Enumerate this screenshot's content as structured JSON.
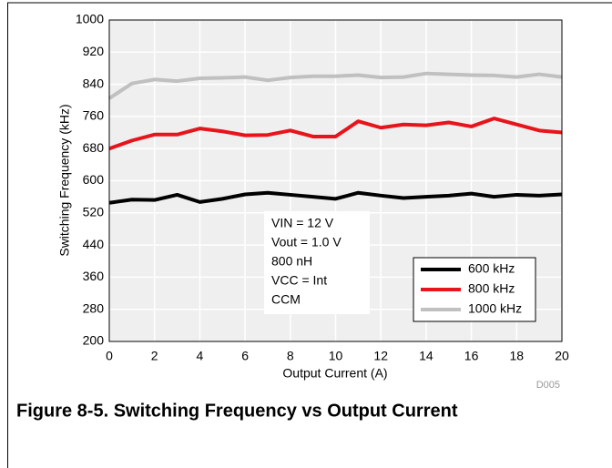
{
  "chart_data": {
    "type": "line",
    "title": "Figure 8-5. Switching Frequency vs Output Current",
    "xlabel": "Output Current (A)",
    "ylabel": "Switching Frequency (kHz)",
    "x": [
      0,
      1,
      2,
      3,
      4,
      5,
      6,
      7,
      8,
      9,
      10,
      11,
      12,
      13,
      14,
      15,
      16,
      17,
      18,
      19,
      20
    ],
    "series": [
      {
        "name": "600 kHz",
        "color": "#000000",
        "values": [
          545,
          553,
          552,
          565,
          547,
          555,
          566,
          570,
          565,
          560,
          555,
          570,
          563,
          557,
          560,
          563,
          568,
          560,
          565,
          563,
          566
        ]
      },
      {
        "name": "800 kHz",
        "color": "#e8141b",
        "values": [
          680,
          700,
          715,
          715,
          730,
          723,
          713,
          714,
          725,
          710,
          710,
          748,
          732,
          740,
          738,
          745,
          735,
          755,
          740,
          725,
          720
        ]
      },
      {
        "name": "1000 kHz",
        "color": "#c0c0c0",
        "values": [
          805,
          842,
          852,
          848,
          855,
          856,
          858,
          850,
          857,
          860,
          860,
          863,
          857,
          858,
          867,
          865,
          863,
          862,
          858,
          865,
          858
        ]
      }
    ],
    "xlim": [
      0,
      20
    ],
    "ylim": [
      200,
      1000
    ],
    "xticks": [
      0,
      2,
      4,
      6,
      8,
      10,
      12,
      14,
      16,
      18,
      20
    ],
    "yticks": [
      200,
      280,
      360,
      440,
      520,
      600,
      680,
      760,
      840,
      920,
      1000
    ],
    "grid": true,
    "legend": "lower right",
    "annotation": [
      "VIN = 12 V",
      "Vout = 1.0 V",
      "800 nH",
      "VCC = Int",
      "CCM"
    ],
    "footnote": "D005"
  }
}
